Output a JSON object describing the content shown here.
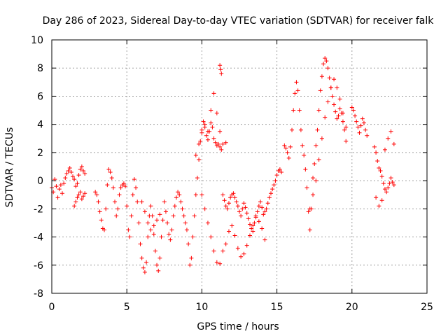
{
  "chart_data": {
    "type": "scatter",
    "title": "Day 286 of 2023, Sidereal Day-to-day VTEC variation (SDTVAR) for receiver falk",
    "xlabel": "GPS time / hours",
    "ylabel": "SDTVAR / TECUs",
    "xlim": [
      0,
      25
    ],
    "ylim": [
      -8,
      10
    ],
    "xticks": [
      0,
      5,
      10,
      15,
      20,
      25
    ],
    "yticks": [
      -8,
      -6,
      -4,
      -2,
      0,
      2,
      4,
      6,
      8,
      10
    ],
    "grid": true,
    "marker": "+",
    "series": [
      {
        "name": "SDTVAR",
        "color": "#ff0000",
        "x": [
          0.0,
          0.1,
          0.2,
          0.3,
          0.4,
          0.5,
          0.6,
          0.7,
          0.8,
          0.9,
          1.0,
          1.1,
          1.2,
          1.3,
          1.4,
          1.5,
          1.6,
          1.7,
          1.8,
          1.9,
          2.0,
          2.1,
          2.2,
          1.5,
          1.6,
          1.7,
          1.8,
          1.9,
          2.0,
          2.1,
          2.2,
          2.9,
          3.0,
          3.1,
          3.2,
          3.3,
          3.4,
          3.5,
          3.6,
          3.7,
          3.8,
          3.9,
          4.0,
          4.1,
          4.2,
          4.3,
          4.4,
          4.5,
          4.6,
          4.7,
          4.8,
          4.9,
          5.0,
          5.1,
          5.2,
          5.3,
          5.4,
          5.5,
          5.6,
          5.7,
          5.8,
          5.9,
          6.0,
          6.1,
          6.2,
          6.3,
          6.4,
          6.5,
          6.6,
          6.7,
          6.8,
          6.9,
          7.0,
          7.1,
          7.2,
          7.3,
          7.4,
          7.5,
          7.6,
          7.7,
          7.8,
          7.9,
          8.0,
          8.1,
          8.2,
          8.3,
          8.4,
          8.5,
          8.6,
          8.7,
          8.8,
          8.9,
          9.0,
          9.1,
          9.2,
          9.3,
          9.4,
          9.5,
          9.6,
          9.7,
          9.8,
          9.9,
          10.0,
          10.1,
          10.2,
          10.3,
          10.4,
          10.5,
          10.6,
          10.7,
          10.8,
          10.9,
          11.0,
          11.1,
          11.2,
          11.3,
          11.4,
          11.5,
          11.6,
          11.7,
          11.8,
          11.9,
          12.0,
          12.1,
          12.2,
          12.3,
          12.4,
          12.5,
          12.6,
          12.7,
          12.8,
          12.9,
          13.0,
          13.1,
          13.2,
          13.3,
          13.4,
          13.5,
          13.6,
          13.7,
          13.8,
          13.9,
          14.0,
          14.1,
          14.2,
          14.3,
          14.4,
          14.5,
          14.6,
          14.7,
          14.8,
          14.9,
          15.0,
          15.1,
          15.2,
          15.3,
          6.0,
          6.2,
          6.4,
          6.6,
          6.8,
          7.0,
          7.2,
          9.6,
          9.8,
          10.0,
          10.2,
          10.4,
          10.6,
          10.8,
          11.0,
          11.2,
          11.4,
          11.6,
          10.0,
          10.2,
          10.4,
          10.6,
          10.8,
          11.0,
          11.2,
          11.4,
          11.6,
          11.8,
          12.0,
          12.2,
          12.4,
          12.6,
          12.8,
          13.0,
          13.2,
          13.4,
          13.6,
          13.8,
          14.0,
          14.2,
          11.2,
          11.25,
          11.3,
          15.5,
          15.6,
          15.7,
          15.8,
          15.9,
          16.0,
          16.1,
          16.2,
          16.3,
          16.4,
          16.5,
          16.6,
          16.7,
          16.8,
          16.9,
          17.0,
          17.1,
          17.2,
          17.3,
          17.4,
          17.5,
          17.6,
          17.7,
          17.8,
          17.9,
          18.0,
          18.1,
          18.2,
          18.3,
          18.4,
          18.5,
          18.6,
          18.7,
          18.8,
          18.9,
          19.0,
          19.1,
          19.2,
          19.3,
          19.4,
          19.5,
          19.6,
          17.2,
          17.4,
          17.6,
          17.8,
          18.0,
          18.2,
          18.4,
          18.6,
          18.8,
          19.0,
          19.2,
          19.4,
          19.6,
          20.0,
          20.1,
          20.2,
          20.3,
          20.4,
          20.5,
          20.6,
          20.7,
          20.8,
          20.9,
          21.0,
          21.5,
          21.6,
          21.7,
          21.8,
          21.9,
          22.0,
          22.1,
          22.2,
          22.3,
          22.4,
          22.5,
          22.6,
          22.7,
          22.8,
          21.6,
          21.8,
          22.0,
          22.2,
          22.4,
          22.6,
          22.8
        ],
        "y": [
          -0.5,
          -0.8,
          0.1,
          -0.4,
          -1.2,
          -0.6,
          -0.3,
          -0.9,
          -0.2,
          0.2,
          0.5,
          0.7,
          0.9,
          0.6,
          0.3,
          0.1,
          -0.4,
          -0.2,
          0.4,
          0.8,
          1.0,
          0.7,
          0.5,
          -1.8,
          -1.5,
          -1.2,
          -1.0,
          -0.8,
          -1.3,
          -1.1,
          -0.9,
          -0.8,
          -1.0,
          -1.5,
          -2.2,
          -2.8,
          -3.4,
          -3.5,
          -2.0,
          -0.3,
          0.8,
          0.6,
          0.2,
          -0.5,
          -1.5,
          -2.5,
          -2.0,
          -1.0,
          -0.5,
          -0.3,
          -0.2,
          -0.4,
          -1.8,
          -3.5,
          -4.0,
          -2.5,
          -1.0,
          0.1,
          -0.5,
          -1.5,
          -3.0,
          -4.5,
          -5.5,
          -6.2,
          -6.5,
          -5.8,
          -4.0,
          -2.5,
          -1.8,
          -2.5,
          -3.8,
          -5.0,
          -6.0,
          -6.4,
          -5.5,
          -4.0,
          -2.8,
          -1.5,
          -2.2,
          -3.0,
          -3.8,
          -4.2,
          -3.5,
          -2.5,
          -1.8,
          -1.2,
          -0.8,
          -1.0,
          -1.5,
          -2.0,
          -2.5,
          -3.0,
          -3.5,
          -4.5,
          -6.0,
          -5.5,
          -4.0,
          -2.5,
          -1.0,
          0.2,
          1.5,
          2.8,
          3.6,
          4.2,
          3.8,
          3.2,
          2.9,
          3.5,
          4.1,
          3.8,
          3.0,
          2.7,
          2.5,
          2.6,
          2.4,
          2.2,
          -1.0,
          -1.4,
          -1.8,
          -2.0,
          -1.6,
          -1.2,
          -1.0,
          -0.9,
          -1.2,
          -1.5,
          -1.8,
          -2.2,
          -2.5,
          -2.0,
          -1.6,
          -1.9,
          -2.3,
          -2.7,
          -3.1,
          -3.4,
          -3.6,
          -3.0,
          -2.6,
          -2.2,
          -1.8,
          -1.5,
          -1.9,
          -2.4,
          -2.2,
          -2.0,
          -1.6,
          -1.2,
          -0.9,
          -0.6,
          -0.3,
          0.0,
          0.4,
          0.7,
          0.8,
          0.6,
          -1.5,
          -2.2,
          -3.0,
          -3.5,
          -3.2,
          -2.8,
          -2.4,
          1.8,
          2.6,
          3.4,
          4.0,
          3.5,
          5.0,
          6.2,
          4.8,
          3.5,
          2.6,
          2.7,
          -1.0,
          -2.0,
          -3.0,
          -4.0,
          -5.0,
          -5.8,
          -5.9,
          -5.0,
          -4.5,
          -3.6,
          -3.2,
          -3.9,
          -4.8,
          -5.4,
          -5.2,
          -4.6,
          -3.9,
          -3.2,
          -2.5,
          -2.9,
          -3.4,
          -4.2,
          8.2,
          7.9,
          7.6,
          2.5,
          2.3,
          2.0,
          1.6,
          2.4,
          3.6,
          5.0,
          6.2,
          7.0,
          6.4,
          5.0,
          3.6,
          2.5,
          1.8,
          0.8,
          -0.5,
          -2.2,
          -3.5,
          -2.0,
          0.2,
          1.2,
          2.5,
          3.6,
          5.0,
          6.4,
          7.4,
          8.3,
          8.7,
          8.5,
          8.0,
          7.3,
          6.6,
          6.0,
          5.4,
          4.9,
          4.4,
          4.6,
          5.1,
          4.8,
          4.2,
          3.6,
          2.8,
          -2.0,
          -1.0,
          0.0,
          1.5,
          3.0,
          4.5,
          5.6,
          6.6,
          7.2,
          6.6,
          5.8,
          4.8,
          3.8,
          5.2,
          5.0,
          4.6,
          4.2,
          3.8,
          3.4,
          3.9,
          4.4,
          4.1,
          3.6,
          3.2,
          2.4,
          2.0,
          1.4,
          0.9,
          0.7,
          0.3,
          -0.2,
          -0.6,
          -0.8,
          -0.5,
          -0.2,
          0.2,
          -0.1,
          -0.3,
          -1.2,
          -1.8,
          -1.4,
          2.2,
          3.0,
          3.5,
          2.6
        ]
      }
    ]
  }
}
